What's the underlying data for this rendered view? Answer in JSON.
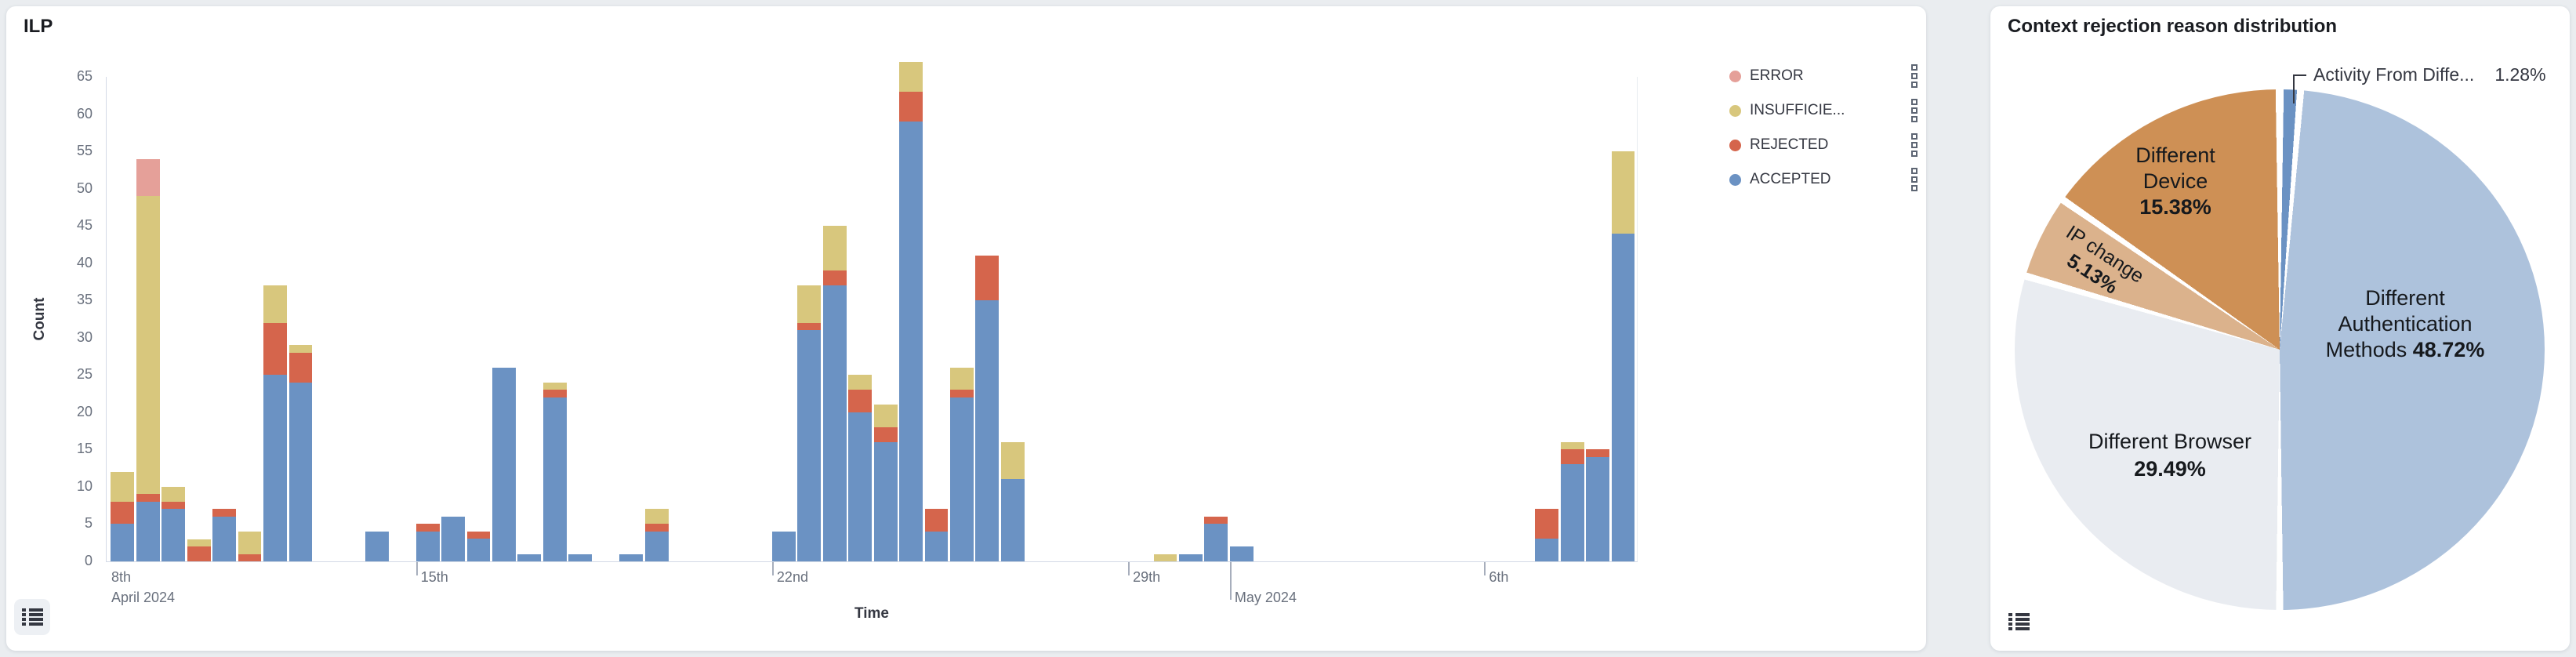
{
  "page": {
    "background": "#eaedf0"
  },
  "panels": {
    "ilp": {
      "title": "ILP",
      "y_axis_label": "Count",
      "x_axis_label": "Time"
    },
    "rejection": {
      "title": "Context rejection reason distribution"
    }
  },
  "chart_data": [
    {
      "type": "bar",
      "stacked": true,
      "title": "ILP",
      "xlabel": "Time",
      "ylabel": "Count",
      "ylim": [
        0,
        65
      ],
      "y_tick_step": 5,
      "grid": false,
      "legend_position": "right",
      "x_domain": [
        "2024-04-08 22:00",
        "2024-05-09 00:00"
      ],
      "bucket_hours": 12,
      "x_ticks": [
        {
          "time": "2024-04-08 00:00",
          "label": "8th",
          "label2": "April 2024",
          "edge": true
        },
        {
          "time": "2024-04-15 00:00",
          "label": "15th"
        },
        {
          "time": "2024-04-22 00:00",
          "label": "22nd"
        },
        {
          "time": "2024-04-29 00:00",
          "label": "29th"
        },
        {
          "time": "2024-05-01 00:00",
          "label": "",
          "label2": "May 2024",
          "long": true
        },
        {
          "time": "2024-05-06 00:00",
          "label": "6th"
        }
      ],
      "series_order": [
        "accepted",
        "rejected",
        "insufficient",
        "error"
      ],
      "series_colors": {
        "accepted": "#6b92c3",
        "rejected": "#d5654c",
        "insufficient": "#d8c77d",
        "error": "#e5a099"
      },
      "legend": [
        {
          "key": "error",
          "label": "ERROR"
        },
        {
          "key": "insufficient",
          "label": "INSUFFICIE..."
        },
        {
          "key": "rejected",
          "label": "REJECTED"
        },
        {
          "key": "accepted",
          "label": "ACCEPTED"
        }
      ],
      "bars": [
        {
          "time": "2024-04-09 00:00",
          "accepted": 5,
          "rejected": 3,
          "insufficient": 4
        },
        {
          "time": "2024-04-09 12:00",
          "accepted": 8,
          "rejected": 1,
          "insufficient": 40,
          "error": 5
        },
        {
          "time": "2024-04-10 00:00",
          "accepted": 7,
          "rejected": 1,
          "insufficient": 2
        },
        {
          "time": "2024-04-10 12:00",
          "rejected": 2,
          "insufficient": 1
        },
        {
          "time": "2024-04-11 00:00",
          "accepted": 6,
          "rejected": 1
        },
        {
          "time": "2024-04-11 12:00",
          "rejected": 1,
          "insufficient": 3
        },
        {
          "time": "2024-04-12 00:00",
          "accepted": 25,
          "rejected": 7,
          "insufficient": 5
        },
        {
          "time": "2024-04-12 12:00",
          "accepted": 24,
          "rejected": 4,
          "insufficient": 1
        },
        {
          "time": "2024-04-14 00:00",
          "accepted": 4
        },
        {
          "time": "2024-04-15 00:00",
          "accepted": 4,
          "rejected": 1
        },
        {
          "time": "2024-04-15 12:00",
          "accepted": 6
        },
        {
          "time": "2024-04-16 00:00",
          "accepted": 3,
          "rejected": 1
        },
        {
          "time": "2024-04-16 12:00",
          "accepted": 26
        },
        {
          "time": "2024-04-17 00:00",
          "accepted": 1
        },
        {
          "time": "2024-04-17 12:00",
          "accepted": 22,
          "rejected": 1,
          "insufficient": 1
        },
        {
          "time": "2024-04-18 00:00",
          "accepted": 1
        },
        {
          "time": "2024-04-19 00:00",
          "accepted": 1
        },
        {
          "time": "2024-04-19 12:00",
          "accepted": 4,
          "rejected": 1,
          "insufficient": 2
        },
        {
          "time": "2024-04-22 00:00",
          "accepted": 4
        },
        {
          "time": "2024-04-22 12:00",
          "accepted": 31,
          "rejected": 1,
          "insufficient": 5
        },
        {
          "time": "2024-04-23 00:00",
          "accepted": 37,
          "rejected": 2,
          "insufficient": 6
        },
        {
          "time": "2024-04-23 12:00",
          "accepted": 20,
          "rejected": 3,
          "insufficient": 2
        },
        {
          "time": "2024-04-24 00:00",
          "accepted": 16,
          "rejected": 2,
          "insufficient": 3
        },
        {
          "time": "2024-04-24 12:00",
          "accepted": 59,
          "rejected": 4,
          "insufficient": 4
        },
        {
          "time": "2024-04-25 00:00",
          "accepted": 4,
          "rejected": 3
        },
        {
          "time": "2024-04-25 12:00",
          "accepted": 22,
          "rejected": 1,
          "insufficient": 3
        },
        {
          "time": "2024-04-26 00:00",
          "accepted": 35,
          "rejected": 6
        },
        {
          "time": "2024-04-26 12:00",
          "accepted": 11,
          "insufficient": 5
        },
        {
          "time": "2024-04-29 12:00",
          "insufficient": 1
        },
        {
          "time": "2024-04-30 00:00",
          "accepted": 1
        },
        {
          "time": "2024-04-30 12:00",
          "accepted": 5,
          "rejected": 1
        },
        {
          "time": "2024-05-01 00:00",
          "accepted": 2
        },
        {
          "time": "2024-05-07 00:00",
          "accepted": 3,
          "rejected": 4
        },
        {
          "time": "2024-05-07 12:00",
          "accepted": 13,
          "rejected": 2,
          "insufficient": 1
        },
        {
          "time": "2024-05-08 00:00",
          "accepted": 14,
          "rejected": 1
        },
        {
          "time": "2024-05-08 12:00",
          "accepted": 44,
          "insufficient": 11
        }
      ]
    },
    {
      "type": "pie",
      "title": "Context rejection reason distribution",
      "start_angle_deg": 0,
      "clockwise": true,
      "slices": [
        {
          "id": "activity-from-different",
          "label": "Activity From Diffe...",
          "pct": 1.28,
          "pct_text": "1.28%",
          "color": "#6b92c3",
          "label_style": "callout"
        },
        {
          "id": "different-authentication-methods",
          "lines": [
            "Different",
            "Authentication",
            "Methods"
          ],
          "pct": 48.72,
          "pct_text": "48.72%",
          "color": "#adc2dc"
        },
        {
          "id": "different-browser",
          "lines": [
            "Different Browser"
          ],
          "pct": 29.49,
          "pct_text": "29.49%",
          "color": "#e9ecf1"
        },
        {
          "id": "ip-change",
          "lines": [
            "IP change"
          ],
          "pct": 5.13,
          "pct_text": "5.13%",
          "color": "#dbb28c"
        },
        {
          "id": "different-device",
          "lines": [
            "Different",
            "Device"
          ],
          "pct": 15.38,
          "pct_text": "15.38%",
          "color": "#ce9055"
        }
      ]
    }
  ]
}
